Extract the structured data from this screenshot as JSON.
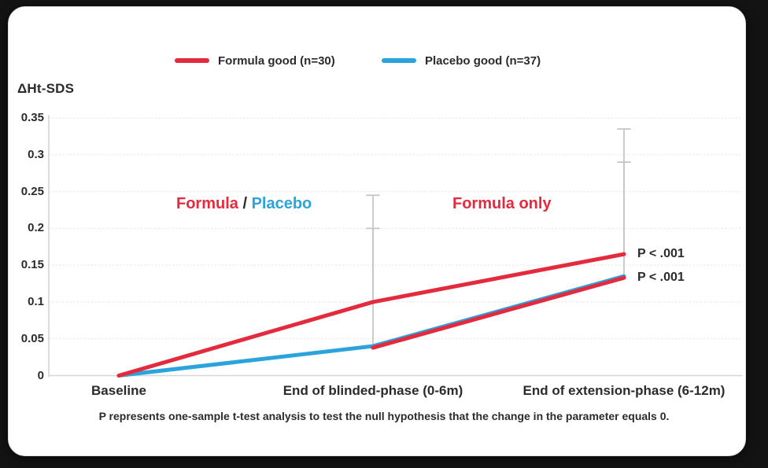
{
  "colors": {
    "formula_red": "#e42b3e",
    "placebo_blue": "#2ba3dc",
    "text_dark": "#2b2b2f",
    "grid": "#ececec",
    "axis": "#d9d9d9",
    "error_bar": "#c4c4c4",
    "page_background": "#131313",
    "card_background": "#ffffff"
  },
  "legend": {
    "items": [
      {
        "label": "Formula good (n=30)",
        "color": "#e42b3e"
      },
      {
        "label": "Placebo good (n=37)",
        "color": "#2ba3dc"
      }
    ]
  },
  "chart_data": {
    "type": "line",
    "title": "",
    "xlabel": "",
    "ylabel": "ΔHt-SDS",
    "categories": [
      "Baseline",
      "End of blinded-phase (0-6m)",
      "End of extension-phase (6-12m)"
    ],
    "ylim": [
      0,
      0.35
    ],
    "ytick_labels": [
      "0",
      "0.05",
      "0.1",
      "0.15",
      "0.2",
      "0.25",
      "0.3",
      "0.35"
    ],
    "grid": true,
    "legend_position": "top",
    "series": [
      {
        "name": "Formula good (n=30)",
        "color": "#e42b3e",
        "values": [
          0,
          0.1,
          0.165
        ],
        "upper_ci": [
          null,
          0.245,
          0.335
        ],
        "p_label": "P < .001"
      },
      {
        "name": "Placebo good (n=37)",
        "color": "#2ba3dc",
        "values": [
          0,
          0.04,
          0.135
        ],
        "upper_ci": [
          null,
          0.2,
          0.29
        ],
        "p_label": "P < .001"
      }
    ],
    "annotations": [
      {
        "parts": [
          {
            "text": "Formula",
            "color": "#e42b3e"
          },
          {
            "text": " / ",
            "color": "#2b2b2f"
          },
          {
            "text": "Placebo",
            "color": "#2ba3dc"
          }
        ]
      },
      {
        "parts": [
          {
            "text": "Formula only",
            "color": "#e42b3e"
          }
        ]
      }
    ]
  },
  "footnote": "P represents one-sample t-test analysis to test the null hypothesis that the change in the parameter equals 0."
}
